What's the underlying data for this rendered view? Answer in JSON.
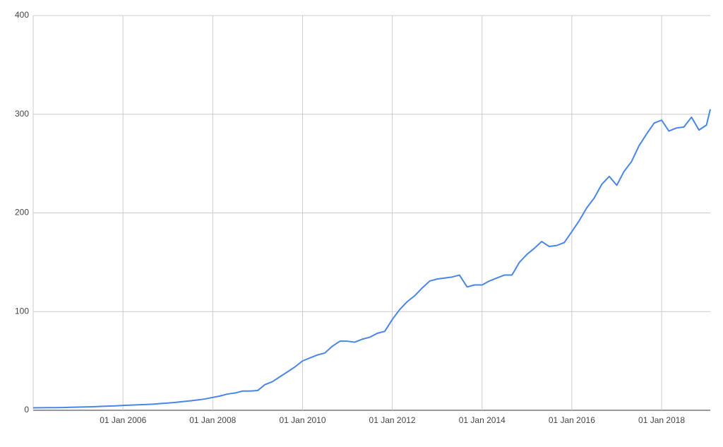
{
  "chart_data": {
    "type": "line",
    "x": [
      "2004-01-01",
      "2004-03-01",
      "2004-05-01",
      "2004-07-01",
      "2004-09-01",
      "2004-11-01",
      "2005-01-01",
      "2005-03-01",
      "2005-05-01",
      "2005-07-01",
      "2005-09-01",
      "2005-11-01",
      "2006-01-01",
      "2006-03-01",
      "2006-05-01",
      "2006-07-01",
      "2006-09-01",
      "2006-11-01",
      "2007-01-01",
      "2007-03-01",
      "2007-05-01",
      "2007-07-01",
      "2007-09-01",
      "2007-11-01",
      "2008-01-01",
      "2008-03-01",
      "2008-05-01",
      "2008-07-01",
      "2008-09-01",
      "2008-11-01",
      "2009-01-01",
      "2009-03-01",
      "2009-05-01",
      "2009-07-01",
      "2009-09-01",
      "2009-11-01",
      "2010-01-01",
      "2010-03-01",
      "2010-05-01",
      "2010-07-01",
      "2010-09-01",
      "2010-11-01",
      "2011-01-01",
      "2011-03-01",
      "2011-05-01",
      "2011-07-01",
      "2011-09-01",
      "2011-11-01",
      "2012-01-01",
      "2012-03-01",
      "2012-05-01",
      "2012-07-01",
      "2012-09-01",
      "2012-11-01",
      "2013-01-01",
      "2013-03-01",
      "2013-05-01",
      "2013-07-01",
      "2013-09-01",
      "2013-11-01",
      "2014-01-01",
      "2014-03-01",
      "2014-05-01",
      "2014-07-01",
      "2014-09-01",
      "2014-11-01",
      "2015-01-01",
      "2015-03-01",
      "2015-05-01",
      "2015-07-01",
      "2015-09-01",
      "2015-11-01",
      "2016-01-01",
      "2016-03-01",
      "2016-05-01",
      "2016-07-01",
      "2016-09-01",
      "2016-11-01",
      "2017-01-01",
      "2017-03-01",
      "2017-05-01",
      "2017-07-01",
      "2017-09-01",
      "2017-11-01",
      "2018-01-01",
      "2018-03-01",
      "2018-05-01",
      "2018-07-01",
      "2018-09-01",
      "2018-11-01",
      "2019-01-01",
      "2019-02-01"
    ],
    "series": [
      {
        "color": "#4a86e8",
        "values": [
          2.5,
          2.6,
          2.7,
          2.7,
          2.8,
          3.0,
          3.2,
          3.4,
          3.6,
          3.9,
          4.2,
          4.5,
          4.9,
          5.2,
          5.5,
          5.8,
          6.2,
          6.8,
          7.3,
          8,
          8.8,
          9.6,
          10.5,
          11.5,
          13,
          14.5,
          16.5,
          17.5,
          19.5,
          19.5,
          20,
          26,
          29,
          34,
          39,
          44,
          50,
          53,
          56,
          58,
          65,
          70,
          70,
          69,
          72,
          74,
          78,
          80,
          92,
          102,
          110,
          116,
          124,
          131,
          133,
          134,
          135,
          137,
          125,
          127,
          127,
          131,
          134,
          137,
          137,
          150,
          158,
          164,
          171,
          166,
          167,
          170,
          181,
          192,
          205,
          215,
          229,
          237,
          228,
          242,
          252,
          268,
          280,
          291,
          294,
          283,
          286,
          287,
          297,
          284,
          289,
          305
        ]
      }
    ],
    "xlim": [
      "2004-01-01",
      "2019-02-01"
    ],
    "xticks": [
      {
        "value": "2006-01-01",
        "label": "01 Jan 2006"
      },
      {
        "value": "2008-01-01",
        "label": "01 Jan 2008"
      },
      {
        "value": "2010-01-01",
        "label": "01 Jan 2010"
      },
      {
        "value": "2012-01-01",
        "label": "01 Jan 2012"
      },
      {
        "value": "2014-01-01",
        "label": "01 Jan 2014"
      },
      {
        "value": "2016-01-01",
        "label": "01 Jan 2016"
      },
      {
        "value": "2018-01-01",
        "label": "01 Jan 2018"
      }
    ],
    "ylim": [
      0,
      400
    ],
    "yticks": [
      0,
      100,
      200,
      300,
      400
    ],
    "grid": true
  }
}
